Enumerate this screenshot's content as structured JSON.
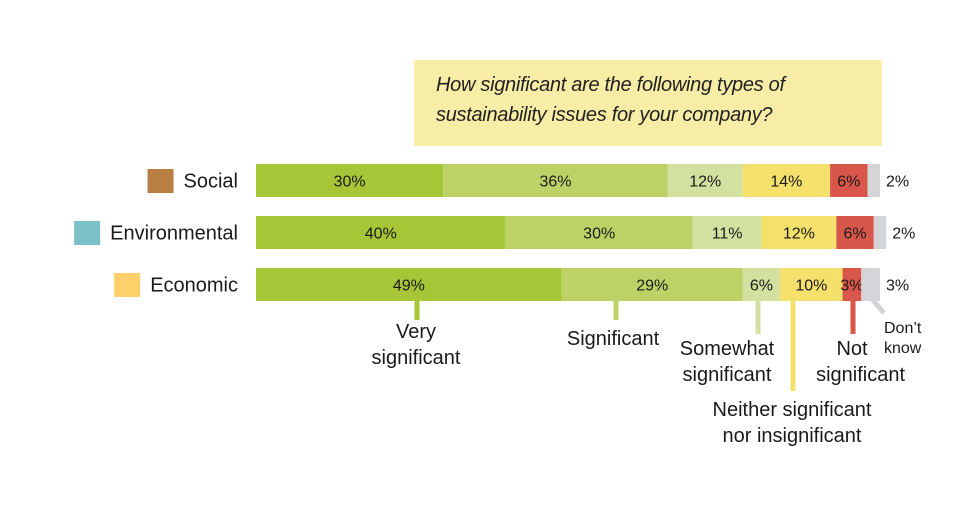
{
  "chart_data": {
    "type": "bar",
    "orientation": "horizontal-stacked",
    "title": "How significant are the following types of sustainability issues for your company?",
    "categories": [
      "Social",
      "Environmental",
      "Economic"
    ],
    "category_colors": [
      "#b97e43",
      "#7bbfc9",
      "#fdd06b"
    ],
    "series": [
      {
        "name": "Very significant",
        "color": "#a6c637",
        "values": [
          30,
          40,
          49
        ]
      },
      {
        "name": "Significant",
        "color": "#bcd267",
        "values": [
          36,
          30,
          29
        ]
      },
      {
        "name": "Somewhat significant",
        "color": "#d3e1a0",
        "values": [
          12,
          11,
          6
        ]
      },
      {
        "name": "Neither significant nor insignificant",
        "color": "#f5e06b",
        "values": [
          14,
          12,
          10
        ]
      },
      {
        "name": "Not significant",
        "color": "#d9564a",
        "values": [
          6,
          6,
          3
        ]
      },
      {
        "name": "Don’t know",
        "color": "#d4d5d8",
        "values": [
          2,
          2,
          3
        ]
      }
    ],
    "value_suffix": "%",
    "legend_placement": "bottom (leader lines)",
    "xlim": [
      0,
      100
    ]
  }
}
